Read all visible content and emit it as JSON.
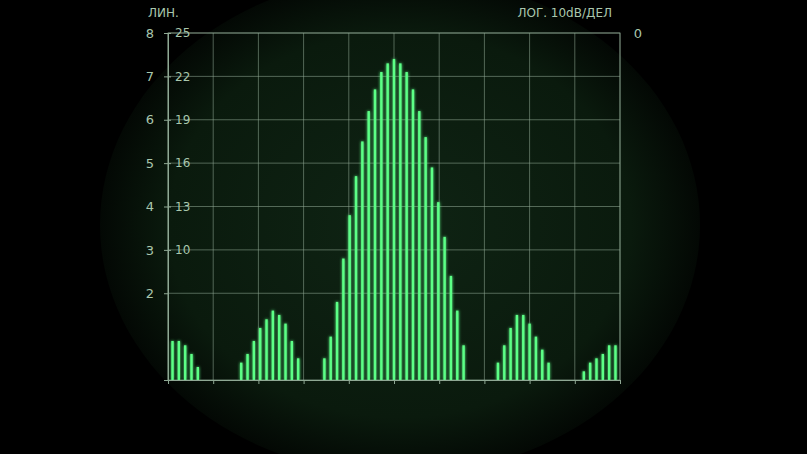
{
  "chart_data": {
    "type": "bar",
    "y_label": "ЛИН.",
    "y2_label": "ЛОГ. 10dB/ДЕЛ",
    "annotations": [
      {
        "text": "0"
      }
    ],
    "x": [
      0.1,
      0.24,
      0.38,
      0.52,
      0.66,
      1.62,
      1.76,
      1.9,
      2.04,
      2.18,
      2.32,
      2.46,
      2.6,
      2.74,
      2.88,
      3.46,
      3.6,
      3.74,
      3.88,
      4.02,
      4.16,
      4.3,
      4.44,
      4.58,
      4.72,
      4.86,
      5.0,
      5.14,
      5.28,
      5.42,
      5.56,
      5.7,
      5.84,
      5.98,
      6.12,
      6.26,
      6.4,
      6.54,
      7.3,
      7.44,
      7.58,
      7.72,
      7.86,
      8.0,
      8.14,
      8.28,
      8.42,
      9.2,
      9.34,
      9.48,
      9.62,
      9.76,
      9.9
    ],
    "values": [
      0.9,
      0.9,
      0.8,
      0.6,
      0.3,
      0.4,
      0.6,
      0.9,
      1.2,
      1.4,
      1.6,
      1.5,
      1.3,
      0.9,
      0.5,
      0.5,
      1.0,
      1.8,
      2.8,
      3.8,
      4.7,
      5.5,
      6.2,
      6.7,
      7.1,
      7.3,
      7.4,
      7.3,
      7.1,
      6.7,
      6.2,
      5.6,
      4.9,
      4.1,
      3.3,
      2.4,
      1.6,
      0.8,
      0.4,
      0.8,
      1.2,
      1.5,
      1.5,
      1.3,
      1.0,
      0.7,
      0.4,
      0.2,
      0.4,
      0.5,
      0.6,
      0.8,
      0.8
    ],
    "color": "#5cff86",
    "xlim": [
      0,
      10
    ],
    "xticks": [
      0,
      1,
      2,
      3,
      4,
      5,
      6,
      7,
      8,
      9,
      10
    ],
    "ylim": [
      0,
      8
    ],
    "yticks": [
      2,
      3,
      4,
      5,
      6,
      7,
      8
    ],
    "y2lim": [
      1,
      25
    ],
    "y2ticks": [
      10,
      13,
      16,
      19,
      22,
      25
    ],
    "grid": true,
    "tick_labels": "y"
  }
}
